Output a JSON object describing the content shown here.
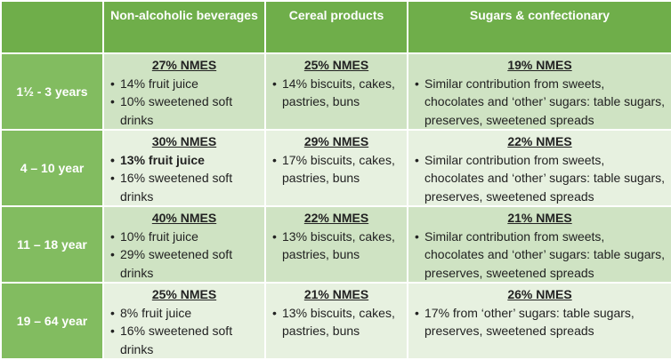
{
  "header": {
    "columns": [
      "Non-alcoholic beverages",
      "Cereal products",
      "Sugars & confectionary"
    ]
  },
  "rows": [
    {
      "label": "1½ - 3 years",
      "cells": [
        {
          "heading": "27% NMES",
          "bullets": [
            "14% fruit juice",
            "10% sweetened soft drinks"
          ]
        },
        {
          "heading": "25% NMES",
          "bullets": [
            "14% biscuits, cakes, pastries, buns"
          ]
        },
        {
          "heading": "19% NMES",
          "bullets": [
            "Similar contribution from sweets, chocolates and ‘other’ sugars: table sugars, preserves, sweetened spreads"
          ]
        }
      ]
    },
    {
      "label": "4 – 10 year",
      "cells": [
        {
          "heading": "30% NMES",
          "bullets": [
            "13% fruit juice",
            "16% sweetened soft drinks"
          ]
        },
        {
          "heading": "29% NMES",
          "bullets": [
            "17% biscuits, cakes, pastries, buns"
          ]
        },
        {
          "heading": "22% NMES",
          "bullets": [
            "Similar contribution from sweets, chocolates and ‘other’ sugars: table sugars, preserves, sweetened spreads"
          ]
        }
      ]
    },
    {
      "label": "11 – 18 year",
      "cells": [
        {
          "heading": "40% NMES",
          "bullets": [
            "10% fruit juice",
            "29% sweetened soft drinks"
          ]
        },
        {
          "heading": "22% NMES",
          "bullets": [
            "13% biscuits, cakes, pastries, buns"
          ]
        },
        {
          "heading": "21% NMES",
          "bullets": [
            "Similar contribution from sweets, chocolates and ‘other’ sugars: table sugars, preserves, sweetened spreads"
          ]
        }
      ]
    },
    {
      "label": "19 – 64 year",
      "cells": [
        {
          "heading": "25% NMES",
          "bullets": [
            "8% fruit juice",
            "16% sweetened soft drinks"
          ]
        },
        {
          "heading": "21% NMES",
          "bullets": [
            "13% biscuits, cakes, pastries, buns"
          ]
        },
        {
          "heading": "26% NMES",
          "bullets": [
            "17% from ‘other’ sugars: table sugars, preserves, sweetened spreads"
          ]
        }
      ]
    }
  ]
}
